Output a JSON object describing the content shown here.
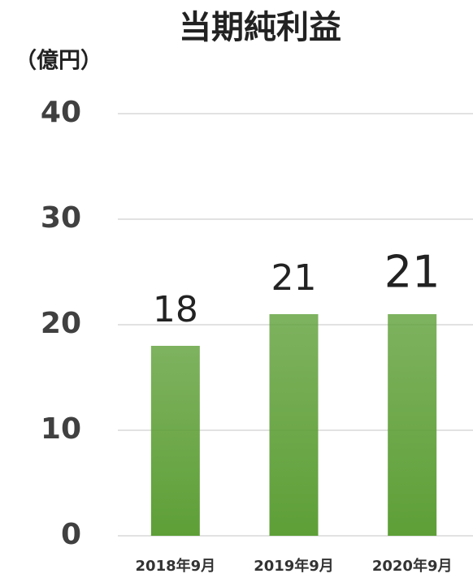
{
  "chart_data": {
    "type": "bar",
    "title": "当期純利益",
    "ylabel": "（億円）",
    "categories": [
      "2018年9月",
      "2019年9月",
      "2020年9月"
    ],
    "values": [
      18,
      21,
      21
    ],
    "color": "#5e9f37",
    "ylim": [
      0,
      40
    ],
    "yticks": [
      0,
      10,
      20,
      30,
      40
    ],
    "grid": true
  }
}
